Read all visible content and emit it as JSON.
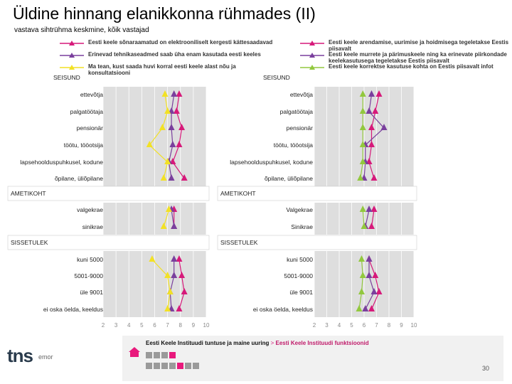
{
  "title": "Üldine hinnang elanikkonna rühmades (II)",
  "subtitle": "vastava sihtrühma keskmine, kõik vastajad",
  "legend_left": [
    {
      "label": "Eesti keele sõnaraamatud on elektrooniliselt kergesti kättesaadavad",
      "color": "#d6197a"
    },
    {
      "label": "Erinevad tehnikaseadmed saab üha enam kasutada eesti keeles",
      "color": "#7a3f9d"
    },
    {
      "label": "Ma tean, kust saada huvi korral eesti keele alast nõu ja konsultatsiooni",
      "color": "#f2e125"
    }
  ],
  "legend_right": [
    {
      "label": "Eesti keele arendamise, uurimise ja hoidmisega tegeletakse Eestis piisavalt",
      "color": "#d6197a"
    },
    {
      "label": "Eesti keele murrete ja pärimuskeele ning ka erinevate piirkondade keelekasutusega tegeletakse Eestis piisavalt",
      "color": "#7a3f9d"
    },
    {
      "label": "Eesti keele korrektse kasutuse kohta on Eestis piisavalt infot",
      "color": "#92c83e"
    }
  ],
  "footer": {
    "source_text": "Eesti Keele Instituudi tuntuse ja maine uuring",
    "separator": ">",
    "source_link": "Eesti Keele Instituudi funktsioonid",
    "page_number": "30",
    "logo_text": "tns",
    "logo_sub": "emor"
  },
  "chart_data": [
    {
      "type": "line",
      "orientation": "horizontal-profile",
      "x_ticks": [
        "2",
        "3",
        "4",
        "5",
        "6",
        "7",
        "8",
        "9",
        "10"
      ],
      "xlim": [
        2,
        10
      ],
      "rows": [
        {
          "label": "SEISUND",
          "header": true
        },
        {
          "label": "ettevõtja"
        },
        {
          "label": "palgatöötaja"
        },
        {
          "label": "pensionär"
        },
        {
          "label": "töötu, tööotsija"
        },
        {
          "label": "lapsehoolduspuhkusel, kodune"
        },
        {
          "label": "õpilane, üliõpilane"
        },
        {
          "label": "AMETIKOHT",
          "header": true
        },
        {
          "label": "valgekrae"
        },
        {
          "label": "sinikrae"
        },
        {
          "label": "SISSETULEK",
          "header": true
        },
        {
          "label": "kuni 5000"
        },
        {
          "label": "5001-9000"
        },
        {
          "label": "üle 9001"
        },
        {
          "label": "ei oska öelda, keeldus"
        }
      ],
      "series": [
        {
          "color": "#d6197a",
          "values": [
            null,
            7.9,
            7.7,
            8.1,
            7.9,
            7.4,
            8.3,
            null,
            7.5,
            7.5,
            null,
            7.9,
            8.1,
            8.3,
            7.9
          ]
        },
        {
          "color": "#7a3f9d",
          "values": [
            null,
            7.5,
            7.3,
            7.3,
            7.4,
            7.1,
            7.3,
            null,
            7.3,
            7.5,
            null,
            7.5,
            7.5,
            7.2,
            7.3
          ]
        },
        {
          "color": "#f2e125",
          "values": [
            null,
            6.8,
            7.0,
            6.6,
            5.6,
            7.0,
            6.7,
            null,
            7.1,
            6.7,
            null,
            5.8,
            7.0,
            7.2,
            7.0
          ]
        }
      ]
    },
    {
      "type": "line",
      "orientation": "horizontal-profile",
      "x_ticks": [
        "2",
        "3",
        "4",
        "5",
        "6",
        "7",
        "8",
        "9",
        "10"
      ],
      "xlim": [
        2,
        10
      ],
      "rows": [
        {
          "label": "SEISUND",
          "header": true
        },
        {
          "label": "ettevõtja"
        },
        {
          "label": "palgatöötaja"
        },
        {
          "label": "pensionär"
        },
        {
          "label": "töötu, tööotsija"
        },
        {
          "label": "lapsehoolduspuhkusel, kodune"
        },
        {
          "label": "õpilane, üliõpilane"
        },
        {
          "label": "AMETIKOHT",
          "header": true
        },
        {
          "label": "Valgekrae"
        },
        {
          "label": "Sinikrae"
        },
        {
          "label": "SISSETULEK",
          "header": true
        },
        {
          "label": "kuni 5000"
        },
        {
          "label": "5001-9000"
        },
        {
          "label": "üle 9001"
        },
        {
          "label": "ei oska öelda, keeldus"
        }
      ],
      "series": [
        {
          "color": "#d6197a",
          "values": [
            null,
            7.2,
            6.9,
            6.6,
            6.6,
            6.4,
            6.8,
            null,
            6.8,
            6.6,
            null,
            6.4,
            6.9,
            7.2,
            6.6
          ]
        },
        {
          "color": "#7a3f9d",
          "values": [
            null,
            6.6,
            6.4,
            7.6,
            6.1,
            6.1,
            6.0,
            null,
            6.4,
            6.1,
            null,
            6.4,
            6.4,
            6.8,
            6.1
          ]
        },
        {
          "color": "#92c83e",
          "values": [
            null,
            5.9,
            5.9,
            5.9,
            5.9,
            5.9,
            5.7,
            null,
            5.9,
            6.0,
            null,
            5.8,
            5.9,
            5.8,
            5.6
          ]
        }
      ]
    }
  ]
}
